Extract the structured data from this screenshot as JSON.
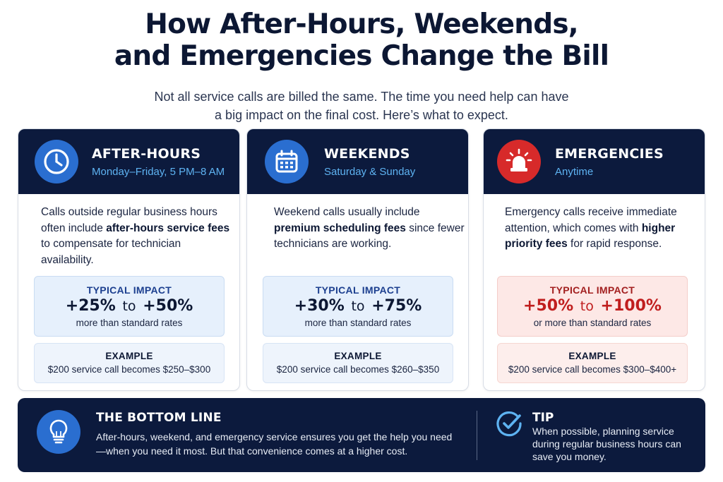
{
  "header": {
    "title_line1": "How After-Hours, Weekends,",
    "title_line2": "and Emergencies Change the Bill",
    "subtitle_line1": "Not all service calls are billed the same. The time you need help can have",
    "subtitle_line2": "a big impact on the final cost. Here’s what to expect."
  },
  "cards": [
    {
      "title": "AFTER-HOURS",
      "subtitle": "Monday–Friday, 5 PM–8 AM",
      "icon": "clock-icon",
      "body_pre": "Calls outside regular business hours often include ",
      "body_bold": "after-hours service fees",
      "body_post": " to compensate for technician availability.",
      "impact_label": "TYPICAL IMPACT",
      "impact_from": "+25%",
      "impact_to_word": "to",
      "impact_to": "+50%",
      "impact_note": "more than standard rates",
      "example_label": "EXAMPLE",
      "example_text": "$200 service call becomes $250–$300"
    },
    {
      "title": "WEEKENDS",
      "subtitle": "Saturday & Sunday",
      "icon": "calendar-icon",
      "body_pre": "Weekend calls usually include ",
      "body_bold": "premium scheduling fees",
      "body_post": " since fewer technicians are working.",
      "impact_label": "TYPICAL IMPACT",
      "impact_from": "+30%",
      "impact_to_word": "to",
      "impact_to": "+75%",
      "impact_note": "more than standard rates",
      "example_label": "EXAMPLE",
      "example_text": "$200 service call becomes $260–$350"
    },
    {
      "title": "EMERGENCIES",
      "subtitle": "Anytime",
      "icon": "siren-icon",
      "body_pre": "Emergency calls receive immediate attention, which comes with ",
      "body_bold": "higher priority fees",
      "body_post": " for rapid response.",
      "impact_label": "TYPICAL IMPACT",
      "impact_from": "+50%",
      "impact_to_word": "to",
      "impact_to": "+100%",
      "impact_note": "or more than standard rates",
      "example_label": "EXAMPLE",
      "example_text": "$200 service call becomes $300–$400+"
    }
  ],
  "bottom_line": {
    "icon": "lightbulb-icon",
    "title": "THE BOTTOM LINE",
    "text": "After-hours, weekend, and emergency service ensures you get the help you need—when you need it most. But that convenience comes at a higher cost."
  },
  "tip": {
    "icon": "check-circle-icon",
    "title": "TIP",
    "text": "When possible, planning service during regular business hours can save you money."
  },
  "colors": {
    "navy": "#0c1a3d",
    "blue_accent": "#2a6ed0",
    "light_blue_text": "#5eb3f2",
    "red_accent": "#d72a2a",
    "red_text": "#c01e1e"
  }
}
